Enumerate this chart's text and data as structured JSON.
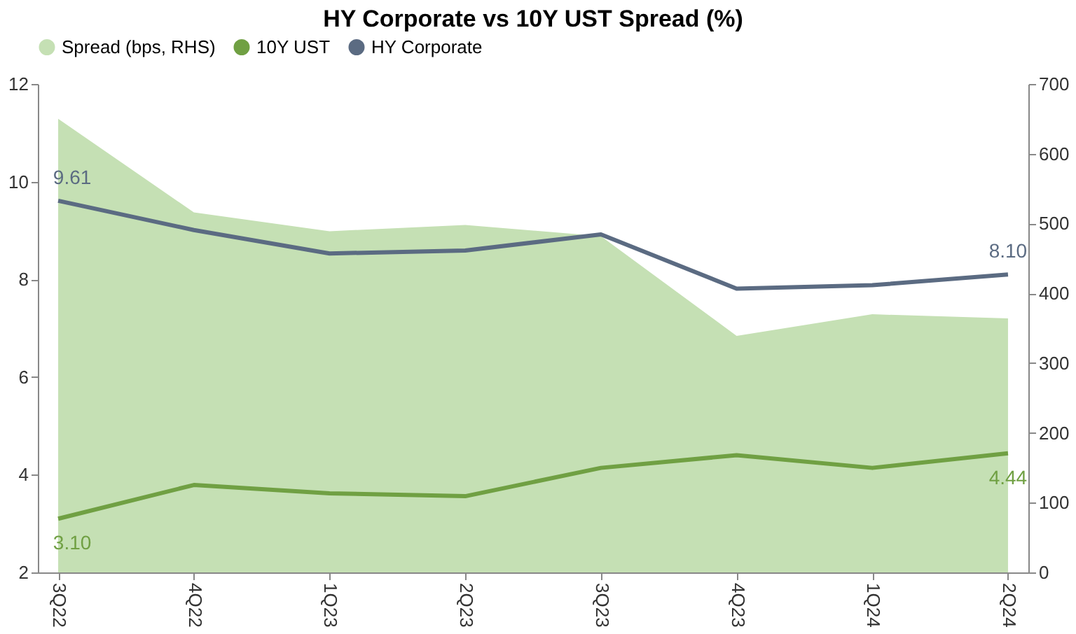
{
  "chart_data": {
    "type": "line",
    "title": "HY Corporate vs 10Y UST Spread (%)",
    "categories": [
      "3Q22",
      "4Q22",
      "1Q23",
      "2Q23",
      "3Q23",
      "4Q23",
      "1Q24",
      "2Q24"
    ],
    "series": [
      {
        "name": "Spread (bps, RHS)",
        "type": "area",
        "axis": "y2",
        "color": "#c5e0b4",
        "values": [
          650,
          516,
          489,
          498,
          482,
          339,
          370,
          364
        ]
      },
      {
        "name": "10Y UST",
        "color": "#70a043",
        "values": [
          3.1,
          3.79,
          3.62,
          3.56,
          4.14,
          4.4,
          4.14,
          4.44
        ],
        "value_labels": [
          "3.10",
          null,
          null,
          null,
          null,
          null,
          null,
          "4.44"
        ]
      },
      {
        "name": "HY Corporate",
        "color": "#5b6b82",
        "values": [
          9.61,
          9.01,
          8.53,
          8.59,
          8.92,
          7.81,
          7.88,
          8.1
        ],
        "value_labels": [
          "9.61",
          null,
          null,
          null,
          null,
          null,
          null,
          "8.10"
        ]
      }
    ],
    "ylim": [
      2,
      12
    ],
    "yticks": [
      2,
      4,
      6,
      8,
      10,
      12
    ],
    "y2lim": [
      0,
      700
    ],
    "y2ticks": [
      0,
      100,
      200,
      300,
      400,
      500,
      600,
      700
    ],
    "legend": "top",
    "grid": false
  }
}
